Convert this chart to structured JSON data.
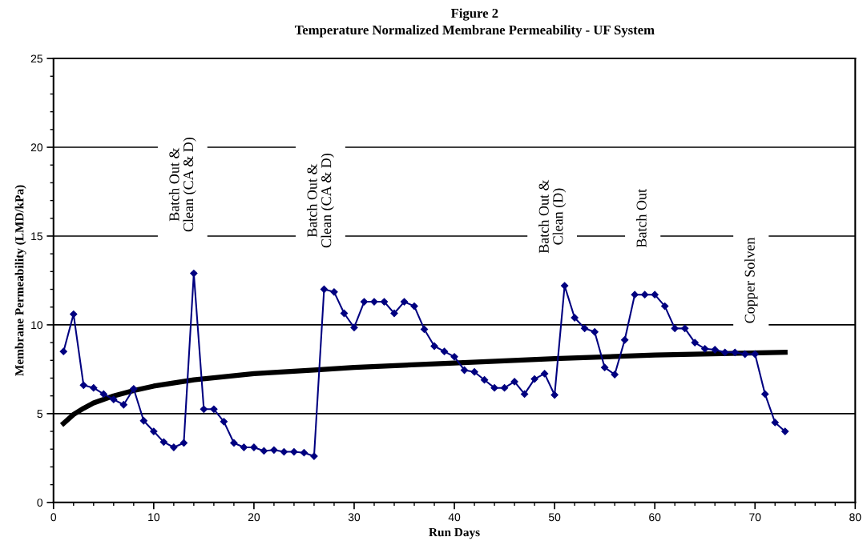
{
  "chart_data": {
    "type": "line",
    "title": "Figure 2",
    "subtitle": "Temperature Normalized Membrane Permeability - UF System",
    "xlabel": "Run Days",
    "ylabel": "Membrane Permeability (LMD/kPa)",
    "series": [
      {
        "color": "#000080",
        "marker": "diamond",
        "x": [
          1,
          2,
          3,
          4,
          5,
          6,
          7,
          8,
          9,
          10,
          11,
          12,
          13,
          14,
          15,
          16,
          17,
          18,
          19,
          20,
          21,
          22,
          23,
          24,
          25,
          26,
          27,
          28,
          29,
          30,
          31,
          32,
          33,
          34,
          35,
          36,
          37,
          38,
          39,
          40,
          41,
          42,
          43,
          44,
          45,
          46,
          47,
          48,
          49,
          50,
          51,
          52,
          53,
          54,
          55,
          56,
          57,
          58,
          59,
          60,
          61,
          62,
          63,
          64,
          65,
          66,
          67,
          68,
          69,
          70,
          71,
          72,
          73
        ],
        "values": [
          8.5,
          10.6,
          6.6,
          6.45,
          6.1,
          5.8,
          5.5,
          6.4,
          4.6,
          4.0,
          3.4,
          3.1,
          3.35,
          12.9,
          5.25,
          5.25,
          4.55,
          3.35,
          3.1,
          3.1,
          2.9,
          2.95,
          2.85,
          2.85,
          2.8,
          2.6,
          12.0,
          11.85,
          10.65,
          9.85,
          11.3,
          11.3,
          11.3,
          10.65,
          11.3,
          11.05,
          9.75,
          8.8,
          8.5,
          8.2,
          7.45,
          7.35,
          6.9,
          6.45,
          6.45,
          6.8,
          6.1,
          6.95,
          7.25,
          6.05,
          12.2,
          10.4,
          9.8,
          9.6,
          7.6,
          7.2,
          9.15,
          11.7,
          11.7,
          11.7,
          11.05,
          9.8,
          9.8,
          9.0,
          8.65,
          8.6,
          8.45,
          8.45,
          8.35,
          8.35,
          6.1,
          4.5,
          4.0
        ]
      },
      {
        "color": "#000000",
        "marker": "none",
        "x": [
          1,
          2,
          3,
          4,
          6,
          8,
          10,
          14,
          20,
          26,
          30,
          40,
          50,
          60,
          73
        ],
        "values": [
          4.45,
          4.95,
          5.3,
          5.6,
          6.0,
          6.3,
          6.55,
          6.9,
          7.25,
          7.45,
          7.6,
          7.85,
          8.1,
          8.3,
          8.45
        ]
      }
    ],
    "xlim": [
      0,
      80
    ],
    "ylim": [
      0,
      25
    ],
    "xticks": [
      0,
      {
        "value": 2,
        "label": null
      },
      {
        "value": 4,
        "label": null
      },
      {
        "value": 6,
        "label": null
      },
      {
        "value": 8,
        "label": null
      },
      10,
      {
        "value": 12,
        "label": null
      },
      {
        "value": 14,
        "label": null
      },
      {
        "value": 16,
        "label": null
      },
      {
        "value": 18,
        "label": null
      },
      20,
      {
        "value": 22,
        "label": null
      },
      {
        "value": 24,
        "label": null
      },
      {
        "value": 26,
        "label": null
      },
      {
        "value": 28,
        "label": null
      },
      30,
      {
        "value": 32,
        "label": null
      },
      {
        "value": 34,
        "label": null
      },
      {
        "value": 36,
        "label": null
      },
      {
        "value": 38,
        "label": null
      },
      40,
      {
        "value": 42,
        "label": null
      },
      {
        "value": 44,
        "label": null
      },
      {
        "value": 46,
        "label": null
      },
      {
        "value": 48,
        "label": null
      },
      50,
      {
        "value": 52,
        "label": null
      },
      {
        "value": 54,
        "label": null
      },
      {
        "value": 56,
        "label": null
      },
      {
        "value": 58,
        "label": null
      },
      60,
      {
        "value": 62,
        "label": null
      },
      {
        "value": 64,
        "label": null
      },
      {
        "value": 66,
        "label": null
      },
      {
        "value": 68,
        "label": null
      },
      70,
      {
        "value": 72,
        "label": null
      },
      {
        "value": 74,
        "label": null
      },
      {
        "value": 76,
        "label": null
      },
      {
        "value": 78,
        "label": null
      },
      80
    ],
    "yticks": [
      0,
      {
        "value": 1,
        "label": null
      },
      {
        "value": 2,
        "label": null
      },
      {
        "value": 3,
        "label": null
      },
      {
        "value": 4,
        "label": null
      },
      5,
      {
        "value": 6,
        "label": null
      },
      {
        "value": 7,
        "label": null
      },
      {
        "value": 8,
        "label": null
      },
      {
        "value": 9,
        "label": null
      },
      10,
      {
        "value": 11,
        "label": null
      },
      {
        "value": 12,
        "label": null
      },
      {
        "value": 13,
        "label": null
      },
      {
        "value": 14,
        "label": null
      },
      15,
      {
        "value": 16,
        "label": null
      },
      {
        "value": 17,
        "label": null
      },
      {
        "value": 18,
        "label": null
      },
      {
        "value": 19,
        "label": null
      },
      20,
      {
        "value": 21,
        "label": null
      },
      {
        "value": 22,
        "label": null
      },
      {
        "value": 23,
        "label": null
      },
      {
        "value": 24,
        "label": null
      },
      25
    ],
    "grid": "y",
    "line_style": "solid",
    "annotations": [
      "Batch Out &\nClean (CA & D)",
      "Batch Out &\nClean (CA & D)",
      "Batch Out &\nClean (D)",
      "Batch Out",
      "Copper Solven"
    ]
  }
}
